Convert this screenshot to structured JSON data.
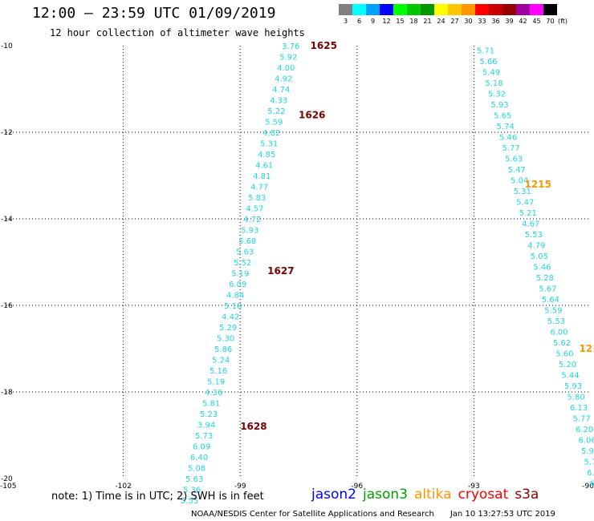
{
  "header": {
    "title": "12:00 – 23:59 UTC 01/09/2019",
    "subtitle": "12 hour collection of altimeter wave heights"
  },
  "colorbar": {
    "units": "(ft)",
    "levels": [
      {
        "label": "3",
        "color": "#808080"
      },
      {
        "label": "6",
        "color": "#00ffff"
      },
      {
        "label": "9",
        "color": "#00a0ff"
      },
      {
        "label": "12",
        "color": "#0000ff"
      },
      {
        "label": "15",
        "color": "#00ff00"
      },
      {
        "label": "18",
        "color": "#00c800"
      },
      {
        "label": "21",
        "color": "#009600"
      },
      {
        "label": "24",
        "color": "#ffff00"
      },
      {
        "label": "27",
        "color": "#ffc800"
      },
      {
        "label": "30",
        "color": "#ff9600"
      },
      {
        "label": "33",
        "color": "#ff0000"
      },
      {
        "label": "36",
        "color": "#c80000"
      },
      {
        "label": "39",
        "color": "#960000"
      },
      {
        "label": "42",
        "color": "#a000a0"
      },
      {
        "label": "45",
        "color": "#ff00ff"
      },
      {
        "label": "70",
        "color": "#000000"
      }
    ]
  },
  "map": {
    "lon_range": [
      -105,
      -90
    ],
    "lat_range": [
      -20,
      -10
    ],
    "lon_ticks": [
      "-105",
      "-102",
      "-99",
      "-96",
      "-93",
      "-90"
    ],
    "lat_ticks": [
      "-10",
      "-12",
      "-14",
      "-16",
      "-18",
      "-20"
    ],
    "swh_color": "#1fd6e6",
    "tracks": [
      {
        "name": "track-west",
        "lat_start": -10.0,
        "lat_step": 0.25,
        "lon_start": -97.7,
        "lon_end": -100.3,
        "values": [
          "3.76",
          "5.92",
          "4.00",
          "4.92",
          "4.74",
          "4.33",
          "5.22",
          "5.59",
          "4.82",
          "5.31",
          "4.85",
          "4.61",
          "4.81",
          "4.77",
          "5.83",
          "4.57",
          "4.72",
          "5.93",
          "5.68",
          "5.63",
          "5.52",
          "5.19",
          "6.09",
          "4.84",
          "5.18",
          "4.42",
          "5.29",
          "5.30",
          "5.86",
          "5.24",
          "5.16",
          "5.19",
          "4.36",
          "5.81",
          "5.23",
          "3.94",
          "5.73",
          "6.09",
          "6.40",
          "5.08",
          "5.63",
          "5.36",
          "5.55"
        ]
      },
      {
        "name": "track-east",
        "lat_start": -10.1,
        "lat_step": 0.25,
        "lon_start": -92.7,
        "lon_end": -89.8,
        "values": [
          "5.71",
          "5.66",
          "5.49",
          "5.18",
          "5.32",
          "5.93",
          "5.65",
          "5.74",
          "5.46",
          "5.77",
          "5.63",
          "5.47",
          "5.04",
          "5.31",
          "5.47",
          "5.21",
          "4.67",
          "5.53",
          "4.79",
          "5.05",
          "5.46",
          "5.28",
          "5.67",
          "5.64",
          "5.59",
          "5.53",
          "6.00",
          "5.62",
          "5.60",
          "5.20",
          "5.44",
          "5.93",
          "5.80",
          "6.13",
          "5.77",
          "6.20",
          "6.06",
          "5.99",
          "5.76",
          "6.72",
          "6.31"
        ]
      }
    ],
    "time_labels": [
      {
        "text": "1625",
        "lat": -10.0,
        "lon": -97.2,
        "color": "#7a0000"
      },
      {
        "text": "1626",
        "lat": -11.6,
        "lon": -97.5,
        "color": "#7a0000"
      },
      {
        "text": "1627",
        "lat": -15.2,
        "lon": -98.3,
        "color": "#7a0000"
      },
      {
        "text": "1628",
        "lat": -18.8,
        "lon": -99.0,
        "color": "#7a0000"
      },
      {
        "text": "1215",
        "lat": -13.2,
        "lon": -91.7,
        "color": "#ff9600"
      },
      {
        "text": "1214",
        "lat": -17.0,
        "lon": -90.3,
        "color": "#ff9600"
      }
    ]
  },
  "note": "note:  1) Time is in UTC;  2) SWH is in feet",
  "legend": [
    {
      "label": "jason2",
      "color": "#0000ff"
    },
    {
      "label": "jason3",
      "color": "#00a000"
    },
    {
      "label": "altika",
      "color": "#ff9600"
    },
    {
      "label": "cryosat",
      "color": "#ff0000"
    },
    {
      "label": "s3a",
      "color": "#8b0000"
    }
  ],
  "footer": {
    "source": "NOAA/NESDIS Center for Satellite Applications and Research",
    "timestamp": "Jan 10 13:27:53 UTC 2019"
  }
}
